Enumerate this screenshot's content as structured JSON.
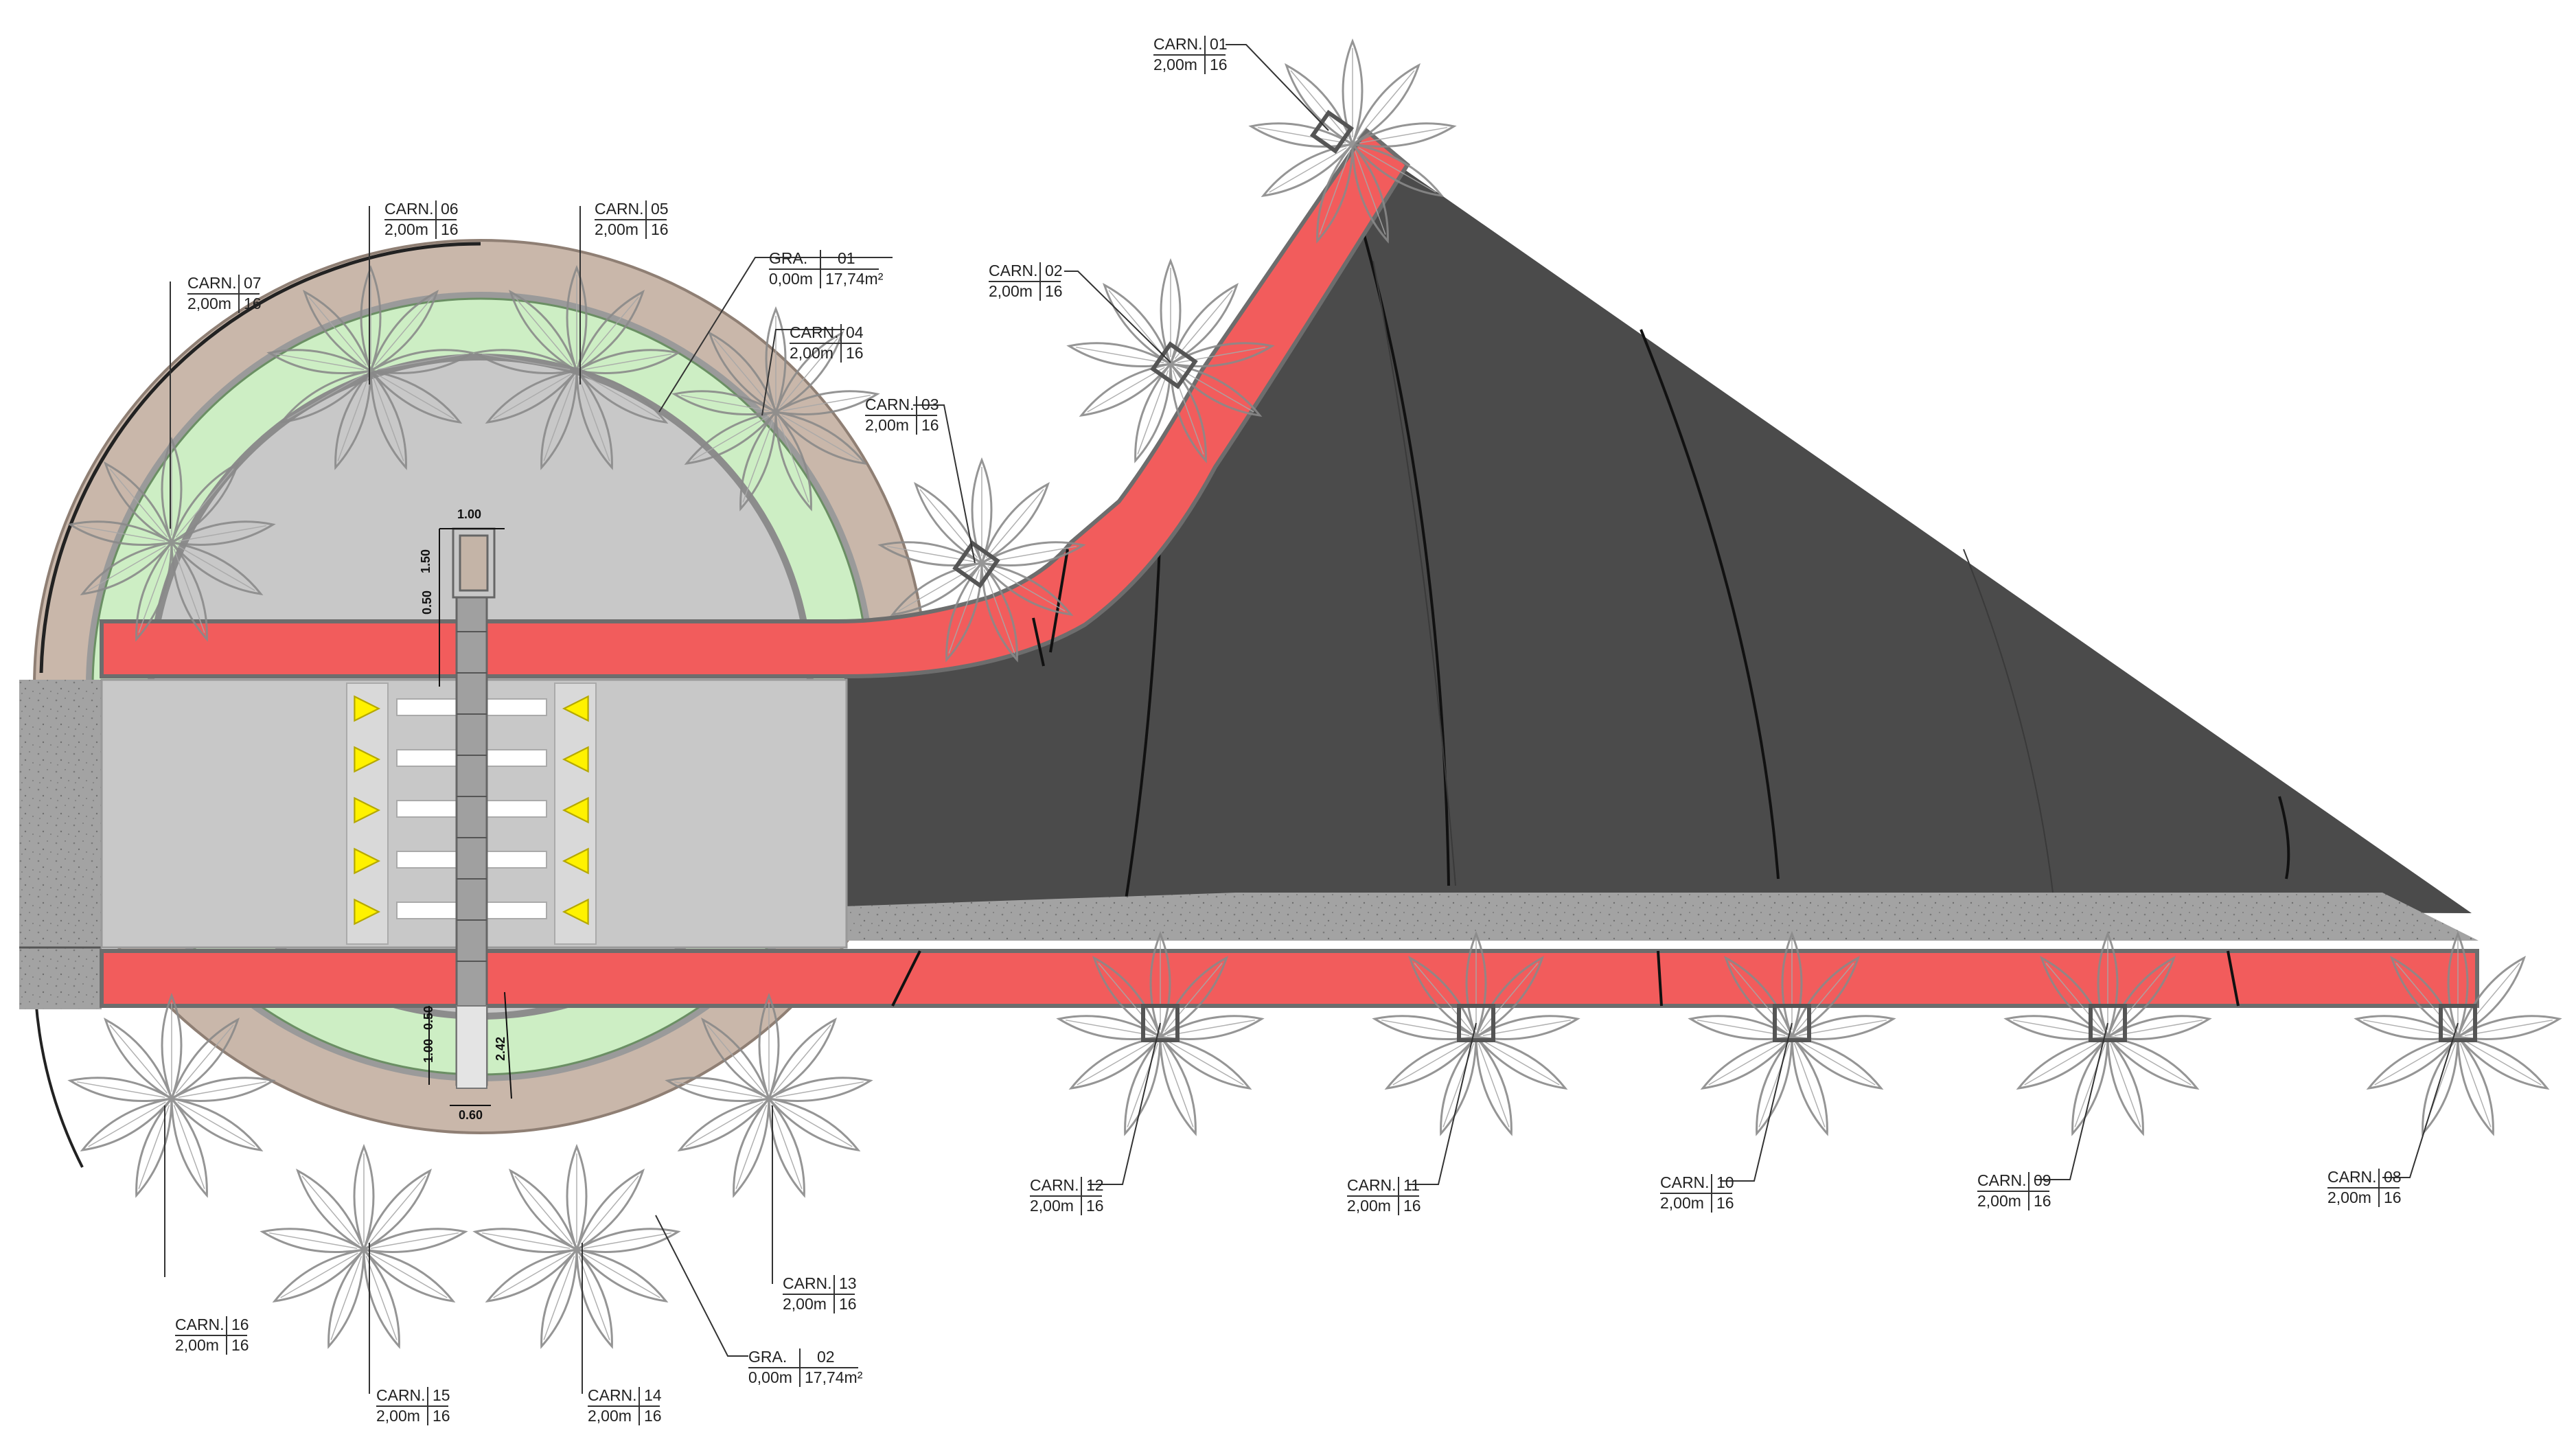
{
  "colors": {
    "background": "#ffffff",
    "asphalt": "#4b4b4b",
    "sidewalk_red": "#f25c5c",
    "concrete": "#c8c8c8",
    "concrete_textured": "#9c9c9c",
    "planting_green": "#cdeec4",
    "earth_brown": "#c9b7aa",
    "crosswalk_stripe": "#ffffff",
    "warning_triangle": "#fff200",
    "leader": "#333333"
  },
  "tags": [
    {
      "code": "CARN.",
      "id": "01",
      "value": "2,00m",
      "qty": "16"
    },
    {
      "code": "CARN.",
      "id": "02",
      "value": "2,00m",
      "qty": "16"
    },
    {
      "code": "CARN.",
      "id": "03",
      "value": "2,00m",
      "qty": "16"
    },
    {
      "code": "CARN.",
      "id": "04",
      "value": "2,00m",
      "qty": "16"
    },
    {
      "code": "CARN.",
      "id": "05",
      "value": "2,00m",
      "qty": "16"
    },
    {
      "code": "CARN.",
      "id": "06",
      "value": "2,00m",
      "qty": "16"
    },
    {
      "code": "CARN.",
      "id": "07",
      "value": "2,00m",
      "qty": "16"
    },
    {
      "code": "CARN.",
      "id": "08",
      "value": "2,00m",
      "qty": "16"
    },
    {
      "code": "CARN.",
      "id": "09",
      "value": "2,00m",
      "qty": "16"
    },
    {
      "code": "CARN.",
      "id": "10",
      "value": "2,00m",
      "qty": "16"
    },
    {
      "code": "CARN.",
      "id": "11",
      "value": "2,00m",
      "qty": "16"
    },
    {
      "code": "CARN.",
      "id": "12",
      "value": "2,00m",
      "qty": "16"
    },
    {
      "code": "CARN.",
      "id": "13",
      "value": "2,00m",
      "qty": "16"
    },
    {
      "code": "CARN.",
      "id": "14",
      "value": "2,00m",
      "qty": "16"
    },
    {
      "code": "CARN.",
      "id": "15",
      "value": "2,00m",
      "qty": "16"
    },
    {
      "code": "CARN.",
      "id": "16",
      "value": "2,00m",
      "qty": "16"
    },
    {
      "code": "GRA.",
      "id": "01",
      "value": "0,00m",
      "qty": "17,74m²"
    },
    {
      "code": "GRA.",
      "id": "02",
      "value": "0,00m",
      "qty": "17,74m²"
    }
  ],
  "dimensions": {
    "ramp_width_top": "1.00",
    "ramp_length_top": "1.50",
    "ramp_gap_top": "0.50",
    "ramp_gap_bottom": "0.50",
    "ramp_length_bottom": "1.00",
    "ramp_total_bottom": "2.42",
    "ramp_width_bottom": "0.60"
  }
}
